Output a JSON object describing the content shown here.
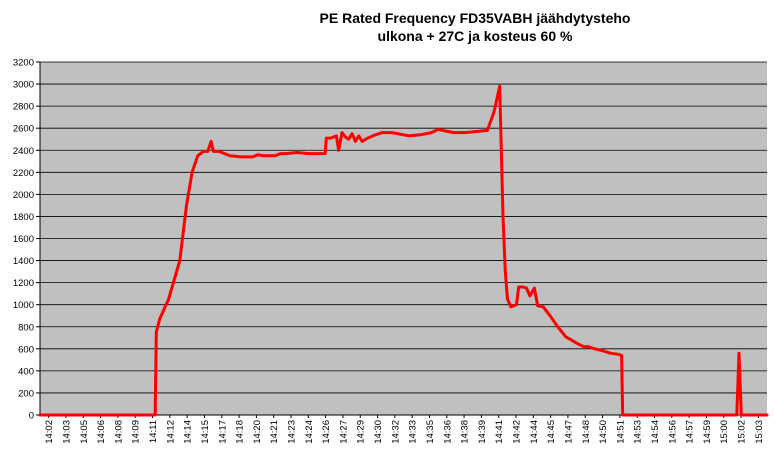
{
  "chart_data": {
    "type": "line",
    "title": "PE Rated Frequency FD35VABH jäähdytysteho",
    "subtitle": "ulkona + 27C ja kosteus 60 %",
    "xlabel": "",
    "ylabel": "",
    "ylim": [
      0,
      3200
    ],
    "yticks": [
      0,
      200,
      400,
      600,
      800,
      1000,
      1200,
      1400,
      1600,
      1800,
      2000,
      2200,
      2400,
      2600,
      2800,
      3000,
      3200
    ],
    "xtick_labels": [
      "14:02",
      "14:03",
      "14:05",
      "14:06",
      "14:08",
      "14:09",
      "14:11",
      "14:12",
      "14:14",
      "14:15",
      "14:17",
      "14:18",
      "14:20",
      "14:21",
      "14:23",
      "14:24",
      "14:26",
      "14:27",
      "14:29",
      "14:30",
      "14:32",
      "14:33",
      "14:35",
      "14:36",
      "14:38",
      "14:39",
      "14:41",
      "14:42",
      "14:44",
      "14:45",
      "14:47",
      "14:48",
      "14:50",
      "14:51",
      "14:53",
      "14:54",
      "14:56",
      "14:57",
      "14:59",
      "15:00",
      "15:02",
      "15:03"
    ],
    "grid": true,
    "plot_background": "#c0c0c0",
    "line_color": "#ff0000",
    "series": [
      {
        "name": "",
        "points": [
          [
            0,
            0
          ],
          [
            10.3,
            0
          ],
          [
            10.4,
            750
          ],
          [
            10.7,
            870
          ],
          [
            11.5,
            1050
          ],
          [
            12.5,
            1400
          ],
          [
            13.1,
            1900
          ],
          [
            13.6,
            2200
          ],
          [
            14.1,
            2350
          ],
          [
            14.6,
            2390
          ],
          [
            15.0,
            2390
          ],
          [
            15.3,
            2480
          ],
          [
            15.5,
            2390
          ],
          [
            16.0,
            2390
          ],
          [
            16.5,
            2370
          ],
          [
            17.0,
            2350
          ],
          [
            18.0,
            2340
          ],
          [
            19.0,
            2340
          ],
          [
            19.5,
            2360
          ],
          [
            20.0,
            2350
          ],
          [
            21.0,
            2350
          ],
          [
            21.5,
            2370
          ],
          [
            22.0,
            2370
          ],
          [
            23.0,
            2380
          ],
          [
            24.0,
            2370
          ],
          [
            25.5,
            2370
          ],
          [
            25.6,
            2510
          ],
          [
            26.0,
            2510
          ],
          [
            26.5,
            2530
          ],
          [
            26.7,
            2400
          ],
          [
            27.0,
            2560
          ],
          [
            27.3,
            2520
          ],
          [
            27.6,
            2500
          ],
          [
            27.9,
            2550
          ],
          [
            28.2,
            2480
          ],
          [
            28.5,
            2530
          ],
          [
            28.8,
            2480
          ],
          [
            29.3,
            2510
          ],
          [
            30.0,
            2540
          ],
          [
            30.6,
            2560
          ],
          [
            31.5,
            2560
          ],
          [
            32.5,
            2540
          ],
          [
            33.0,
            2530
          ],
          [
            34.0,
            2540
          ],
          [
            35.0,
            2560
          ],
          [
            35.6,
            2590
          ],
          [
            36.0,
            2580
          ],
          [
            37.0,
            2560
          ],
          [
            38.0,
            2560
          ],
          [
            39.0,
            2570
          ],
          [
            40.0,
            2580
          ],
          [
            40.6,
            2750
          ],
          [
            41.1,
            2980
          ],
          [
            41.4,
            1800
          ],
          [
            41.6,
            1300
          ],
          [
            41.8,
            1050
          ],
          [
            42.1,
            980
          ],
          [
            42.6,
            1000
          ],
          [
            42.8,
            1160
          ],
          [
            43.2,
            1160
          ],
          [
            43.5,
            1150
          ],
          [
            43.8,
            1080
          ],
          [
            44.2,
            1150
          ],
          [
            44.5,
            990
          ],
          [
            45.0,
            980
          ],
          [
            45.6,
            900
          ],
          [
            46.3,
            800
          ],
          [
            47.0,
            710
          ],
          [
            48.0,
            650
          ],
          [
            48.6,
            620
          ],
          [
            49.0,
            620
          ],
          [
            49.6,
            600
          ],
          [
            50.4,
            580
          ],
          [
            51.0,
            560
          ],
          [
            51.7,
            550
          ],
          [
            52.0,
            540
          ],
          [
            52.1,
            0
          ],
          [
            62.3,
            0
          ],
          [
            62.5,
            560
          ],
          [
            62.7,
            0
          ],
          [
            65,
            0
          ]
        ]
      }
    ]
  }
}
